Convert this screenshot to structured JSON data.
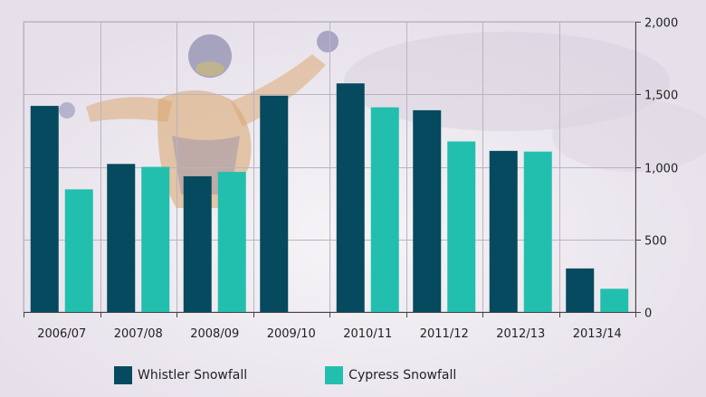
{
  "chart_data": {
    "type": "bar",
    "categories": [
      "2006/07",
      "2007/08",
      "2008/09",
      "2009/10",
      "2010/11",
      "2011/12",
      "2012/13",
      "2013/14"
    ],
    "series": [
      {
        "name": "Whistler Snowfall",
        "color": "#054a5e",
        "values": [
          1420,
          1020,
          935,
          1490,
          1575,
          1390,
          1110,
          300
        ]
      },
      {
        "name": "Cypress Snowfall",
        "color": "#22bfae",
        "values": [
          845,
          1000,
          965,
          null,
          1410,
          1175,
          1105,
          160
        ]
      }
    ],
    "ylim": [
      0,
      2000
    ],
    "yticks": [
      "2,000",
      "1,500",
      "1,000",
      "500",
      "0"
    ],
    "ytick_values": [
      2000,
      1500,
      1000,
      500,
      0
    ],
    "y_axis_side": "right",
    "grid": true,
    "legend_position": "bottom"
  }
}
